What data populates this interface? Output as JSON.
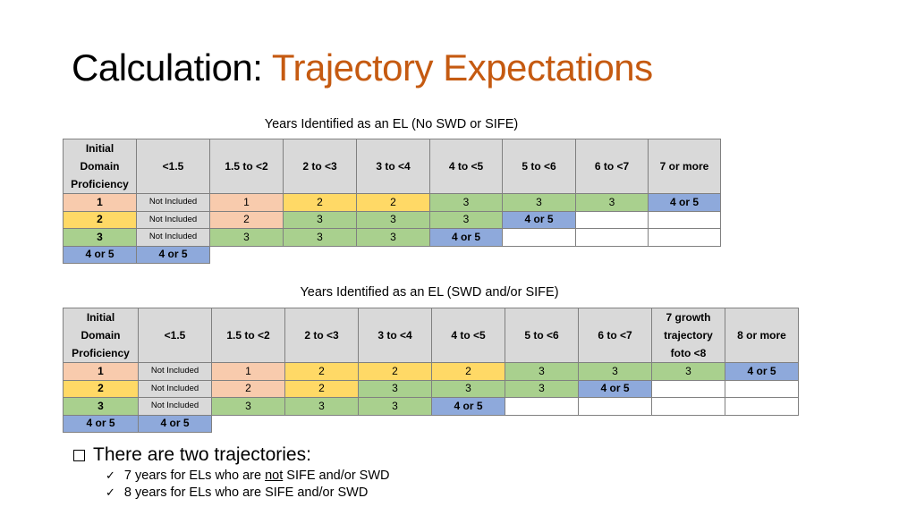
{
  "title": {
    "prefix": "Calculation: ",
    "accent": "Trajectory Expectations"
  },
  "tables": [
    {
      "caption": "Years Identified as an EL (No SWD or SIFE)",
      "corner_lines": [
        "Initial",
        "Domain",
        "Proficiency"
      ],
      "columns": [
        "<1.5",
        "1.5 to <2",
        "2 to <3",
        "3 to <4",
        "4 to <5",
        "5 to <6",
        "6 to <7",
        "7 or more"
      ],
      "rows": [
        {
          "level": "1",
          "cells": [
            "Not Included",
            "1",
            "2",
            "2",
            "3",
            "3",
            "3",
            "4 or 5"
          ]
        },
        {
          "level": "2",
          "cells": [
            "Not Included",
            "2",
            "3",
            "3",
            "3",
            "4 or 5",
            "",
            ""
          ]
        },
        {
          "level": "3",
          "cells": [
            "Not Included",
            "3",
            "3",
            "3",
            "4 or 5",
            "",
            "",
            ""
          ]
        },
        {
          "level": "4 or 5",
          "cells": [
            "4 or 5",
            "",
            "",
            "",
            "",
            "",
            "",
            ""
          ]
        }
      ],
      "colors": [
        [
          "gray",
          "orange",
          "yellow",
          "yellow",
          "green",
          "green",
          "green",
          "blue"
        ],
        [
          "gray",
          "orange",
          "green",
          "green",
          "green",
          "blue",
          "empty",
          "empty"
        ],
        [
          "gray",
          "green",
          "green",
          "green",
          "blue",
          "empty",
          "empty",
          "empty"
        ],
        [
          "blue",
          "none",
          "none",
          "none",
          "none",
          "none",
          "none",
          "none"
        ]
      ]
    },
    {
      "caption": "Years Identified as an EL (SWD and/or SIFE)",
      "corner_lines": [
        "Initial",
        "Domain",
        "Proficiency"
      ],
      "columns": [
        "<1.5",
        "1.5 to <2",
        "2 to <3",
        "3 to <4",
        "4 to <5",
        "5 to <6",
        "6 to <7",
        "7 growth|trajectory|foto <8",
        "8 or more"
      ],
      "rows": [
        {
          "level": "1",
          "cells": [
            "Not Included",
            "1",
            "2",
            "2",
            "2",
            "3",
            "3",
            "3",
            "4 or 5"
          ]
        },
        {
          "level": "2",
          "cells": [
            "Not Included",
            "2",
            "2",
            "3",
            "3",
            "3",
            "4 or 5",
            "",
            ""
          ]
        },
        {
          "level": "3",
          "cells": [
            "Not Included",
            "3",
            "3",
            "3",
            "4 or 5",
            "",
            "",
            "",
            ""
          ]
        },
        {
          "level": "4 or 5",
          "cells": [
            "4 or 5",
            "",
            "",
            "",
            "",
            "",
            "",
            "",
            ""
          ]
        }
      ],
      "colors": [
        [
          "gray",
          "orange",
          "yellow",
          "yellow",
          "yellow",
          "green",
          "green",
          "green",
          "blue"
        ],
        [
          "gray",
          "orange",
          "yellow",
          "green",
          "green",
          "green",
          "blue",
          "empty",
          "empty"
        ],
        [
          "gray",
          "green",
          "green",
          "green",
          "blue",
          "empty",
          "empty",
          "empty",
          "empty"
        ],
        [
          "blue",
          "none",
          "none",
          "none",
          "none",
          "none",
          "none",
          "none",
          "none"
        ]
      ]
    }
  ],
  "level_colors": [
    "orange",
    "yellow",
    "green",
    "blue"
  ],
  "palette": {
    "orange": "#f8cbad",
    "yellow": "#ffd966",
    "green": "#a9d08e",
    "blue": "#8ea9db",
    "gray": "#d9d9d9",
    "title_accent": "#c55a11"
  },
  "bullets": {
    "main": "There are two trajectories:",
    "items": [
      {
        "before": "7 years for ELs who are ",
        "underlined": "not",
        "after": " SIFE and/or SWD"
      },
      {
        "before": "8 years for ELs who are SIFE and/or SWD",
        "underlined": "",
        "after": ""
      }
    ]
  }
}
